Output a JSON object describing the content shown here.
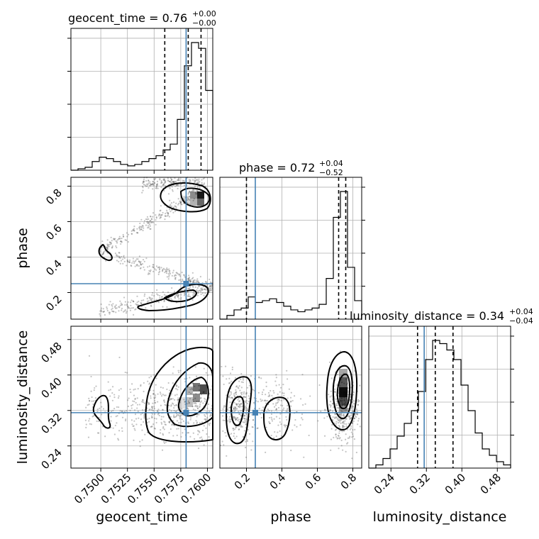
{
  "chart_data": {
    "type": "corner",
    "parameters": [
      "geocent_time",
      "phase",
      "luminosity_distance"
    ],
    "truths": {
      "geocent_time": 0.758,
      "phase": 0.25,
      "luminosity_distance": 0.315
    },
    "titles": [
      {
        "param": "geocent_time",
        "text": "geocent_time = 0.76",
        "plus": "+0.00",
        "minus": "−0.00"
      },
      {
        "param": "phase",
        "text": "phase = 0.72",
        "plus": "+0.04",
        "minus": "−0.52"
      },
      {
        "param": "luminosity_distance",
        "text": "luminosity_distance = 0.34",
        "plus": "+0.04",
        "minus": "−0.04"
      }
    ],
    "axis_labels": {
      "geocent_time": "geocent_time",
      "phase": "phase",
      "luminosity_distance": "luminosity_distance"
    },
    "ranges": {
      "geocent_time": [
        0.7472,
        0.7605
      ],
      "phase": [
        0.05,
        0.85
      ],
      "luminosity_distance": [
        0.19,
        0.51
      ]
    },
    "ticks": {
      "geocent_time": [
        "0.7500",
        "0.7525",
        "0.7550",
        "0.7575",
        "0.7600"
      ],
      "phase": [
        "0.2",
        "0.4",
        "0.6",
        "0.8"
      ],
      "luminosity_distance": [
        "0.24",
        "0.32",
        "0.40",
        "0.48"
      ]
    },
    "hist_geocent_time": {
      "edges_start": 0.7472,
      "bin_width": 0.000665,
      "counts": [
        0,
        1,
        2,
        6,
        9,
        8,
        6,
        4,
        3,
        4,
        6,
        8,
        10,
        14,
        18,
        35,
        72,
        88,
        84,
        55,
        8
      ],
      "quantiles": [
        0.756,
        0.7582,
        0.7594
      ]
    },
    "hist_phase": {
      "edges_start": 0.05,
      "bin_width": 0.04,
      "counts": [
        0,
        2,
        5,
        6,
        12,
        9,
        10,
        11,
        9,
        7,
        5,
        4,
        5,
        6,
        8,
        22,
        55,
        69,
        28,
        10
      ],
      "quantiles": [
        0.2,
        0.72,
        0.76
      ]
    },
    "hist_luminosity_distance": {
      "edges_start": 0.19,
      "bin_width": 0.016,
      "counts": [
        0,
        1,
        3,
        6,
        10,
        14,
        18,
        24,
        34,
        40,
        39,
        37,
        34,
        26,
        18,
        11,
        6,
        4,
        2,
        1
      ],
      "quantiles": [
        0.3,
        0.34,
        0.38
      ]
    }
  }
}
